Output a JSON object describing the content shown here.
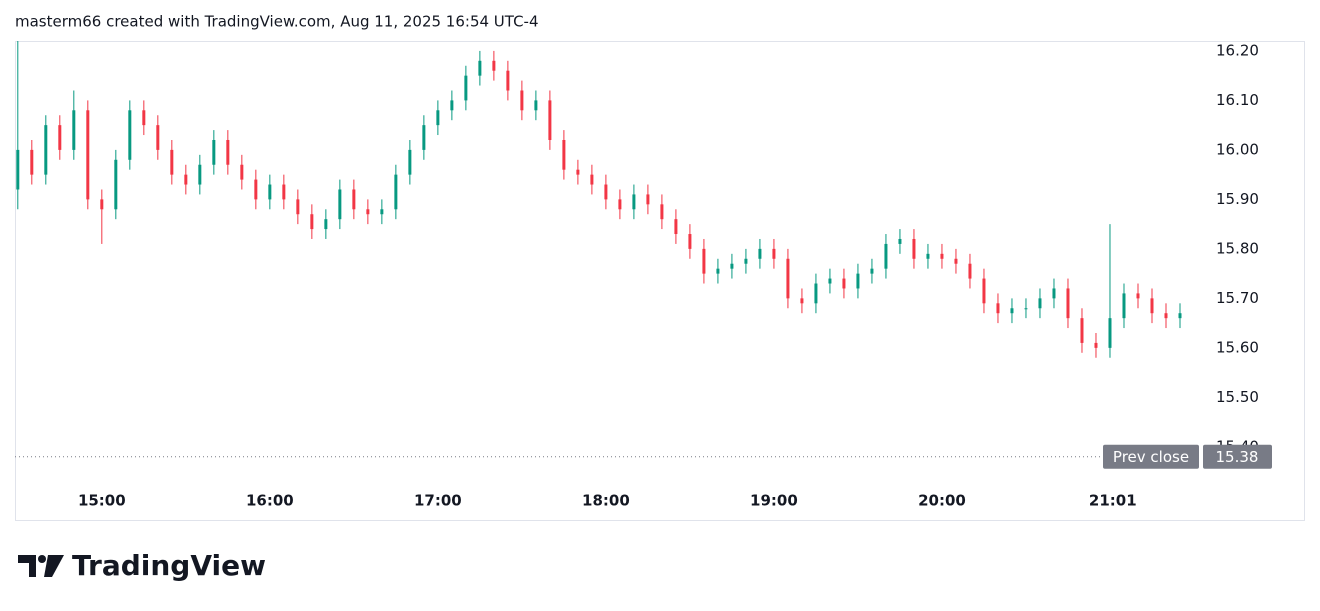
{
  "chart_data": {
    "type": "candlestick",
    "title": "masterm66 created with TradingView.com, Aug 11, 2025 16:54 UTC-4",
    "x": [
      "14:30",
      "14:35",
      "14:40",
      "14:45",
      "14:50",
      "14:55",
      "15:00",
      "15:05",
      "15:10",
      "15:15",
      "15:20",
      "15:25",
      "15:30",
      "15:35",
      "15:40",
      "15:45",
      "15:50",
      "15:55",
      "16:00",
      "16:05",
      "16:10",
      "16:15",
      "16:20",
      "16:25",
      "16:30",
      "16:35",
      "16:40",
      "16:45",
      "16:50",
      "16:55",
      "17:00",
      "17:05",
      "17:10",
      "17:15",
      "17:20",
      "17:25",
      "17:30",
      "17:35",
      "17:40",
      "17:45",
      "17:50",
      "17:55",
      "18:00",
      "18:05",
      "18:10",
      "18:15",
      "18:20",
      "18:25",
      "18:30",
      "18:35",
      "18:40",
      "18:45",
      "18:50",
      "18:55",
      "19:00",
      "19:05",
      "19:10",
      "19:15",
      "19:20",
      "19:25",
      "19:30",
      "19:35",
      "19:40",
      "19:45",
      "19:50",
      "19:55",
      "20:00",
      "20:05",
      "20:10",
      "20:15",
      "20:20",
      "20:25",
      "20:30",
      "20:35",
      "20:40",
      "20:45",
      "20:50",
      "20:55",
      "21:00",
      "21:05",
      "21:10",
      "21:15",
      "21:20",
      "21:25"
    ],
    "open": [
      15.92,
      16.0,
      15.95,
      16.05,
      16.0,
      16.08,
      15.9,
      15.88,
      15.98,
      16.08,
      16.05,
      16.0,
      15.95,
      15.93,
      15.97,
      16.02,
      15.97,
      15.94,
      15.9,
      15.93,
      15.9,
      15.87,
      15.84,
      15.86,
      15.92,
      15.88,
      15.87,
      15.88,
      15.95,
      16.0,
      16.05,
      16.08,
      16.1,
      16.15,
      16.18,
      16.16,
      16.12,
      16.08,
      16.1,
      16.02,
      15.96,
      15.95,
      15.93,
      15.9,
      15.88,
      15.91,
      15.89,
      15.86,
      15.83,
      15.8,
      15.75,
      15.76,
      15.77,
      15.78,
      15.8,
      15.78,
      15.7,
      15.69,
      15.73,
      15.74,
      15.72,
      15.75,
      15.76,
      15.81,
      15.82,
      15.78,
      15.79,
      15.78,
      15.77,
      15.74,
      15.69,
      15.67,
      15.68,
      15.68,
      15.7,
      15.72,
      15.66,
      15.61,
      15.6,
      15.66,
      15.71,
      15.7,
      15.67,
      15.66
    ],
    "high": [
      16.22,
      16.02,
      16.07,
      16.07,
      16.12,
      16.1,
      15.92,
      16.0,
      16.1,
      16.1,
      16.07,
      16.02,
      15.97,
      15.99,
      16.04,
      16.04,
      15.99,
      15.96,
      15.95,
      15.95,
      15.92,
      15.89,
      15.88,
      15.94,
      15.94,
      15.9,
      15.9,
      15.97,
      16.02,
      16.07,
      16.1,
      16.12,
      16.17,
      16.2,
      16.2,
      16.18,
      16.14,
      16.12,
      16.12,
      16.04,
      15.98,
      15.97,
      15.95,
      15.92,
      15.93,
      15.93,
      15.91,
      15.88,
      15.85,
      15.82,
      15.78,
      15.79,
      15.8,
      15.82,
      15.82,
      15.8,
      15.72,
      15.75,
      15.76,
      15.76,
      15.77,
      15.78,
      15.83,
      15.84,
      15.84,
      15.81,
      15.81,
      15.8,
      15.79,
      15.76,
      15.71,
      15.7,
      15.7,
      15.72,
      15.74,
      15.74,
      15.68,
      15.63,
      15.85,
      15.73,
      15.73,
      15.72,
      15.69,
      15.69
    ],
    "low": [
      15.88,
      15.93,
      15.93,
      15.98,
      15.98,
      15.88,
      15.81,
      15.86,
      15.96,
      16.03,
      15.98,
      15.93,
      15.91,
      15.91,
      15.95,
      15.95,
      15.92,
      15.88,
      15.88,
      15.88,
      15.85,
      15.82,
      15.82,
      15.84,
      15.86,
      15.85,
      15.85,
      15.86,
      15.93,
      15.98,
      16.03,
      16.06,
      16.08,
      16.13,
      16.14,
      16.1,
      16.06,
      16.06,
      16.0,
      15.94,
      15.93,
      15.91,
      15.88,
      15.86,
      15.86,
      15.87,
      15.84,
      15.81,
      15.78,
      15.73,
      15.73,
      15.74,
      15.75,
      15.76,
      15.76,
      15.68,
      15.67,
      15.67,
      15.71,
      15.7,
      15.7,
      15.73,
      15.74,
      15.79,
      15.76,
      15.76,
      15.76,
      15.75,
      15.72,
      15.67,
      15.65,
      15.65,
      15.66,
      15.66,
      15.68,
      15.64,
      15.59,
      15.58,
      15.58,
      15.64,
      15.68,
      15.65,
      15.64,
      15.64
    ],
    "close": [
      16.0,
      15.95,
      16.05,
      16.0,
      16.08,
      15.9,
      15.88,
      15.98,
      16.08,
      16.05,
      16.0,
      15.95,
      15.93,
      15.97,
      16.02,
      15.97,
      15.94,
      15.9,
      15.93,
      15.9,
      15.87,
      15.84,
      15.86,
      15.92,
      15.88,
      15.87,
      15.88,
      15.95,
      16.0,
      16.05,
      16.08,
      16.1,
      16.15,
      16.18,
      16.16,
      16.12,
      16.08,
      16.1,
      16.02,
      15.96,
      15.95,
      15.93,
      15.9,
      15.88,
      15.91,
      15.89,
      15.86,
      15.83,
      15.8,
      15.75,
      15.76,
      15.77,
      15.78,
      15.8,
      15.78,
      15.7,
      15.69,
      15.73,
      15.74,
      15.72,
      15.75,
      15.76,
      15.81,
      15.82,
      15.78,
      15.79,
      15.78,
      15.77,
      15.74,
      15.69,
      15.67,
      15.68,
      15.68,
      15.7,
      15.72,
      15.66,
      15.61,
      15.6,
      15.66,
      15.71,
      15.7,
      15.67,
      15.66,
      15.67
    ],
    "up_color": "#089981",
    "down_color": "#f23645",
    "xlim": [
      "14:29",
      "21:35"
    ],
    "xticks": [
      "15:00",
      "16:00",
      "17:00",
      "18:00",
      "19:00",
      "20:00",
      "21:01"
    ],
    "ylim": [
      15.333,
      16.218
    ],
    "yticks": [
      {
        "value": 15.4,
        "label": "15.40"
      },
      {
        "value": 15.5,
        "label": "15.50"
      },
      {
        "value": 15.6,
        "label": "15.60"
      },
      {
        "value": 15.7,
        "label": "15.70"
      },
      {
        "value": 15.8,
        "label": "15.80"
      },
      {
        "value": 15.9,
        "label": "15.90"
      },
      {
        "value": 16.0,
        "label": "16.00"
      },
      {
        "value": 16.1,
        "label": "16.10"
      },
      {
        "value": 16.2,
        "label": "16.20"
      }
    ],
    "prev_close": {
      "label": "Prev close",
      "value": 15.38,
      "value_label": "15.38"
    }
  },
  "logo": "TradingView"
}
